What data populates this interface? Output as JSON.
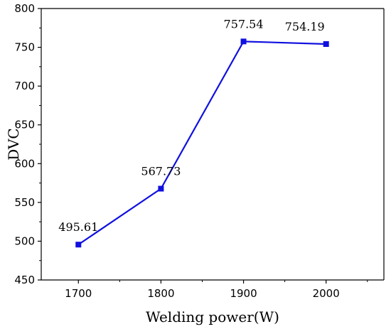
{
  "chart_data": {
    "type": "line",
    "xlabel": "Welding power(W)",
    "ylabel": "DVC",
    "x": [
      1700,
      1800,
      1900,
      2000
    ],
    "x_ticks": [
      "1700",
      "1800",
      "1900",
      "2000"
    ],
    "xlim": [
      1655,
      2070
    ],
    "ylim": [
      450,
      800
    ],
    "y_ticks": [
      450,
      500,
      550,
      600,
      650,
      700,
      750,
      800
    ],
    "series": [
      {
        "values": [
          495.61,
          567.73,
          757.54,
          754.19
        ],
        "labels": [
          "495.61",
          "567.73",
          "757.54",
          "754.19"
        ],
        "color": "#1010e0",
        "marker": "square"
      }
    ],
    "grid": false,
    "legend": "none"
  }
}
